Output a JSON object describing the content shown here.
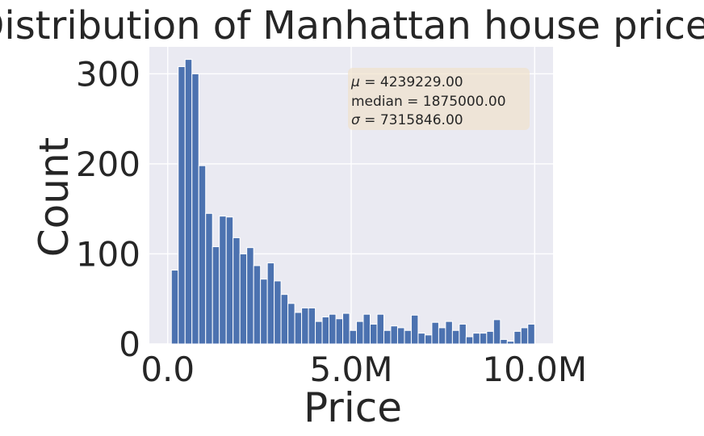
{
  "chart_data": {
    "type": "bar",
    "title": "Distribution of Manhattan house prices",
    "xlabel": "Price",
    "ylabel": "Count",
    "grid": true,
    "bar_color": "#4c72b0",
    "background_color": "#eaeaf2",
    "xlim": [
      -0.5,
      10.5
    ],
    "ylim": [
      0,
      330
    ],
    "x_ticks": [
      {
        "value": 0,
        "label": "0.0"
      },
      {
        "value": 5,
        "label": "5.0M"
      },
      {
        "value": 10,
        "label": "10.0M"
      }
    ],
    "y_ticks": [
      {
        "value": 0,
        "label": "0"
      },
      {
        "value": 100,
        "label": "100"
      },
      {
        "value": 200,
        "label": "200"
      },
      {
        "value": 300,
        "label": "300"
      }
    ],
    "bin_range": [
      0.1,
      10.0
    ],
    "x_unit": "million",
    "values": [
      82,
      308,
      316,
      300,
      198,
      145,
      108,
      142,
      141,
      118,
      100,
      107,
      87,
      72,
      90,
      70,
      55,
      45,
      35,
      40,
      40,
      25,
      30,
      33,
      28,
      34,
      15,
      25,
      33,
      22,
      33,
      15,
      20,
      18,
      15,
      32,
      12,
      10,
      24,
      18,
      25,
      15,
      22,
      8,
      12,
      12,
      14,
      27,
      5,
      3,
      14,
      18,
      22
    ],
    "stats_box": {
      "color": "#f0e2cc",
      "placement": "top-right",
      "lines": [
        {
          "symbol": "μ",
          "text": " = 4239229.00"
        },
        {
          "symbol": "",
          "text": "median = 1875000.00"
        },
        {
          "symbol": "σ",
          "text": " = 7315846.00"
        }
      ]
    }
  }
}
